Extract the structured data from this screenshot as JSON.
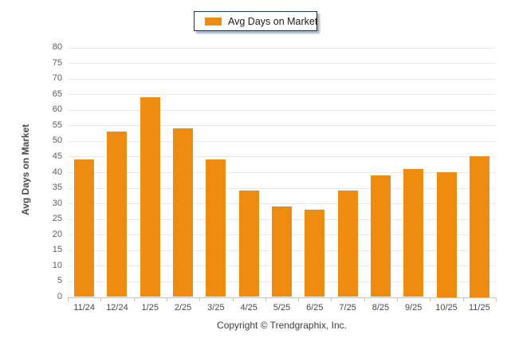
{
  "legend": {
    "label": "Avg Days on Market"
  },
  "footer": {
    "copyright": "Copyright © Trendgraphix, Inc."
  },
  "colors": {
    "bar": "#EE8B11",
    "legend_border": "#17375D",
    "grid": "#E9E9E6",
    "axis": "#C2C2BF",
    "y_tick_label": "#5D5C55",
    "x_tick_label": "#46484F"
  },
  "chart_data": {
    "type": "bar",
    "title": "Avg Days on Market",
    "series_name": "Avg Days on Market",
    "categories": [
      "11/24",
      "12/24",
      "1/25",
      "2/25",
      "3/25",
      "4/25",
      "5/25",
      "6/25",
      "7/25",
      "8/25",
      "9/25",
      "10/25",
      "11/25"
    ],
    "values": [
      44,
      53,
      64,
      54,
      44,
      34,
      29,
      28,
      34,
      39,
      41,
      40,
      45
    ],
    "xlabel": "",
    "ylabel": "Avg Days on Market",
    "ylim": [
      0,
      80
    ],
    "ytick_step": 5,
    "grid": "horizontal",
    "legend_position": "top-center",
    "bar_color": "#EE8B11"
  }
}
